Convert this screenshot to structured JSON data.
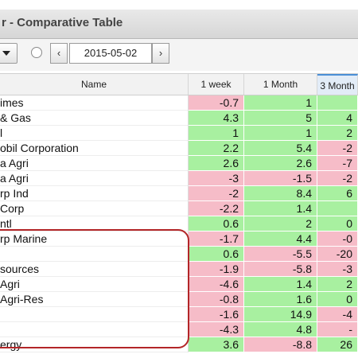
{
  "window": {
    "title": "r - Comparative Table"
  },
  "toolbar": {
    "date": "2015-05-02",
    "prev_label": "‹",
    "next_label": "›"
  },
  "columns": [
    "Name",
    "1 week",
    "1 Month",
    "3 Month"
  ],
  "rows": [
    {
      "name": "imes",
      "w": "-0.7",
      "m": "1",
      "m3": ""
    },
    {
      "name": "& Gas",
      "w": "4.3",
      "m": "5",
      "m3": "4"
    },
    {
      "name": "l",
      "w": "1",
      "m": "1",
      "m3": "2"
    },
    {
      "name": "obil Corporation",
      "w": "2.2",
      "m": "5.4",
      "m3": "-2"
    },
    {
      "name": "a Agri",
      "w": "2.6",
      "m": "2.6",
      "m3": "-7"
    },
    {
      "name": "a Agri",
      "w": "-3",
      "m": "-1.5",
      "m3": "-2"
    },
    {
      "name": "rp Ind",
      "w": "-2",
      "m": "8.4",
      "m3": "6"
    },
    {
      "name": "Corp",
      "w": "-2.2",
      "m": "1.4",
      "m3": ""
    },
    {
      "name": "ntl",
      "w": "0.6",
      "m": "2",
      "m3": "0"
    },
    {
      "name": "rp Marine",
      "w": "-1.7",
      "m": "4.4",
      "m3": "-0"
    },
    {
      "name": "",
      "w": "0.6",
      "m": "-5.5",
      "m3": "-20"
    },
    {
      "name": "sources",
      "w": "-1.9",
      "m": "-5.8",
      "m3": "-3"
    },
    {
      "name": "Agri",
      "w": "-4.6",
      "m": "1.4",
      "m3": "2"
    },
    {
      "name": "Agri-Res",
      "w": "-0.8",
      "m": "1.6",
      "m3": "0"
    },
    {
      "name": "",
      "w": "-1.6",
      "m": "14.9",
      "m3": "-4"
    },
    {
      "name": "",
      "w": "-4.3",
      "m": "4.8",
      "m3": "-"
    },
    {
      "name": "ergy",
      "w": "3.6",
      "m": "-8.8",
      "m3": "26"
    }
  ],
  "row_colors": [
    [
      "neg",
      "pos",
      "pos"
    ],
    [
      "pos",
      "pos",
      "pos"
    ],
    [
      "pos",
      "pos",
      "pos"
    ],
    [
      "pos",
      "pos",
      "neg"
    ],
    [
      "pos",
      "pos",
      "neg"
    ],
    [
      "neg",
      "neg",
      "neg"
    ],
    [
      "neg",
      "pos",
      "pos"
    ],
    [
      "neg",
      "pos",
      "pos"
    ],
    [
      "pos",
      "pos",
      "pos"
    ],
    [
      "neg",
      "pos",
      "neg"
    ],
    [
      "pos",
      "neg",
      "neg"
    ],
    [
      "neg",
      "neg",
      "neg"
    ],
    [
      "neg",
      "pos",
      "pos"
    ],
    [
      "neg",
      "pos",
      "pos"
    ],
    [
      "neg",
      "pos",
      "neg"
    ],
    [
      "neg",
      "pos",
      "neg"
    ],
    [
      "pos",
      "neg",
      "pos"
    ]
  ]
}
